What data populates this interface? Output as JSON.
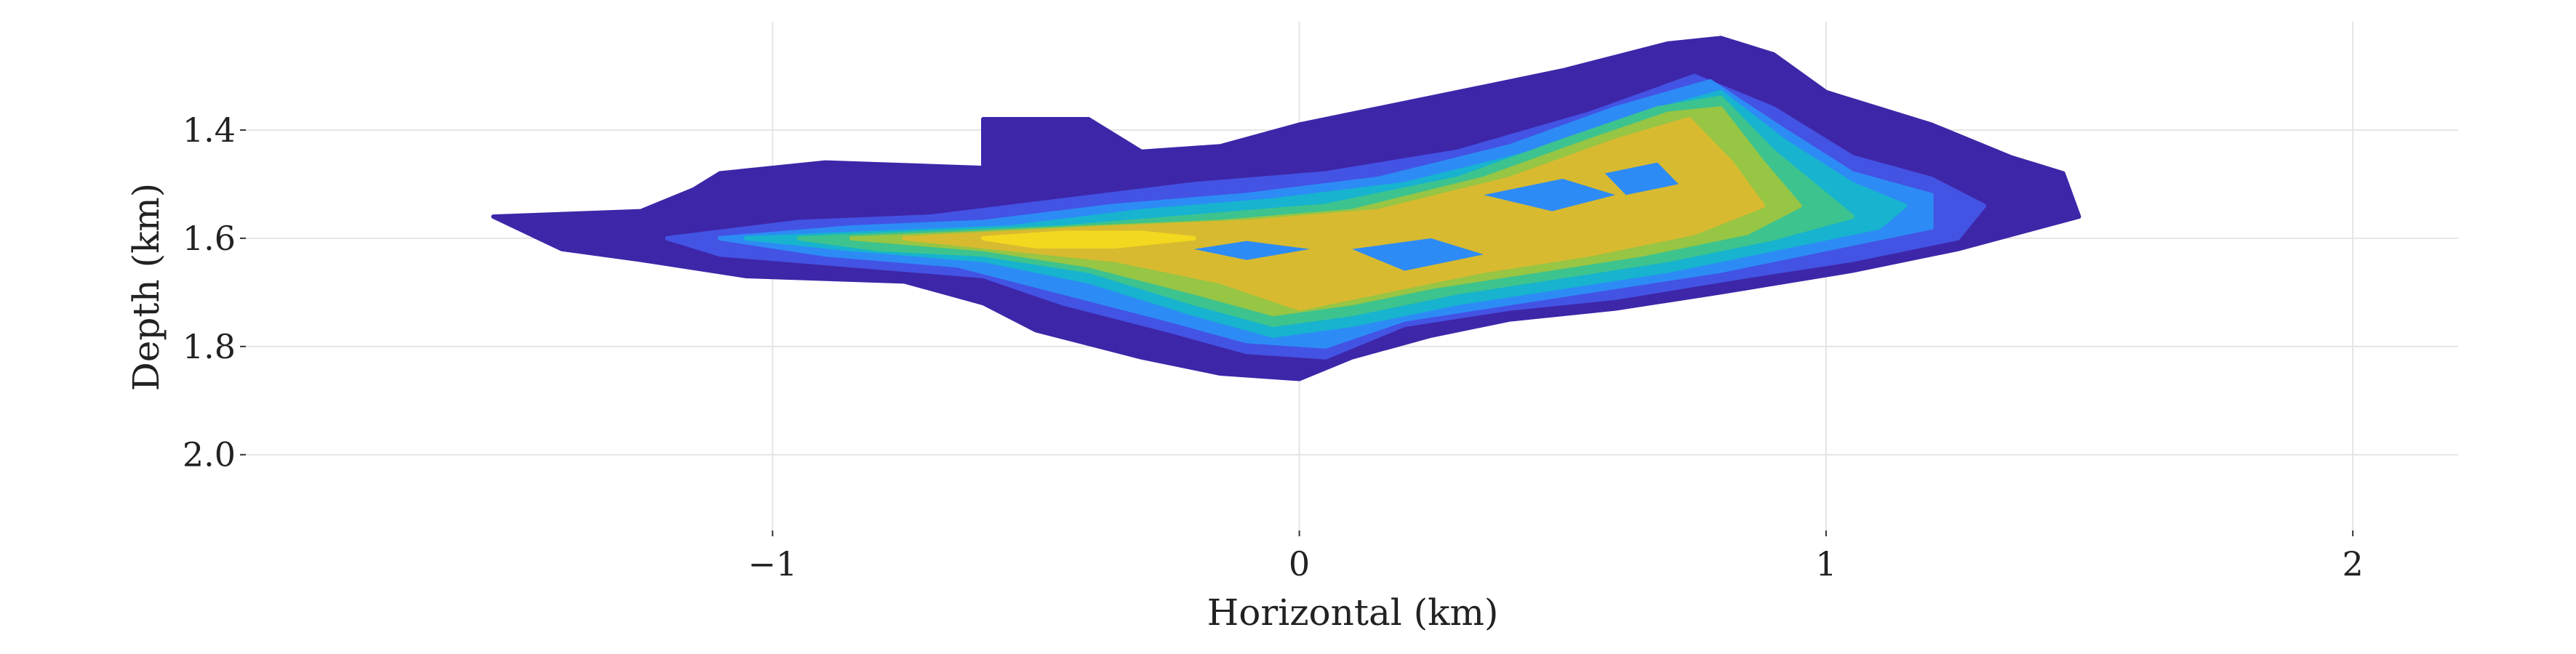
{
  "chart_data": {
    "type": "heatmap",
    "title": "",
    "xlabel": "Horizontal (km)",
    "ylabel": "Depth (km)",
    "xlim": [
      -2.0,
      2.2
    ],
    "ylim": [
      2.14,
      1.2
    ],
    "y_inverted": true,
    "grid": true,
    "colormap": "parula-like (blue → teal → green → yellow)",
    "colors": [
      "#3e26a8",
      "#4353e4",
      "#2d8bf5",
      "#17b3cf",
      "#3dc38e",
      "#97c544",
      "#d8ba30",
      "#f2d81f"
    ],
    "x_ticks": [
      {
        "value": -1,
        "label": "−1"
      },
      {
        "value": 0,
        "label": "0"
      },
      {
        "value": 1,
        "label": "1"
      },
      {
        "value": 2,
        "label": "2"
      }
    ],
    "y_ticks": [
      {
        "value": 1.4,
        "label": "1.4"
      },
      {
        "value": 1.6,
        "label": "1.6"
      },
      {
        "value": 1.8,
        "label": "1.8"
      },
      {
        "value": 2.0,
        "label": "2.0"
      }
    ],
    "levels": [
      {
        "level": 1,
        "color": "#3e26a8",
        "outline": [
          [
            -1.53,
            1.56
          ],
          [
            -1.25,
            1.55
          ],
          [
            -1.15,
            1.51
          ],
          [
            -1.1,
            1.48
          ],
          [
            -0.9,
            1.46
          ],
          [
            -0.6,
            1.47
          ],
          [
            -0.6,
            1.38
          ],
          [
            -0.4,
            1.38
          ],
          [
            -0.3,
            1.44
          ],
          [
            -0.15,
            1.43
          ],
          [
            0.0,
            1.39
          ],
          [
            0.15,
            1.36
          ],
          [
            0.35,
            1.32
          ],
          [
            0.5,
            1.29
          ],
          [
            0.7,
            1.24
          ],
          [
            0.8,
            1.23
          ],
          [
            0.9,
            1.26
          ],
          [
            1.0,
            1.33
          ],
          [
            1.2,
            1.39
          ],
          [
            1.35,
            1.45
          ],
          [
            1.45,
            1.48
          ],
          [
            1.48,
            1.56
          ],
          [
            1.25,
            1.62
          ],
          [
            1.05,
            1.66
          ],
          [
            0.8,
            1.7
          ],
          [
            0.6,
            1.73
          ],
          [
            0.4,
            1.75
          ],
          [
            0.25,
            1.78
          ],
          [
            0.1,
            1.82
          ],
          [
            0.0,
            1.86
          ],
          [
            -0.15,
            1.85
          ],
          [
            -0.3,
            1.82
          ],
          [
            -0.5,
            1.77
          ],
          [
            -0.6,
            1.72
          ],
          [
            -0.75,
            1.68
          ],
          [
            -1.05,
            1.67
          ],
          [
            -1.25,
            1.64
          ],
          [
            -1.4,
            1.62
          ]
        ]
      },
      {
        "level": 2,
        "color": "#4353e4",
        "outline": [
          [
            -1.2,
            1.6
          ],
          [
            -0.95,
            1.57
          ],
          [
            -0.7,
            1.56
          ],
          [
            -0.45,
            1.53
          ],
          [
            -0.2,
            1.5
          ],
          [
            0.05,
            1.48
          ],
          [
            0.3,
            1.44
          ],
          [
            0.55,
            1.37
          ],
          [
            0.75,
            1.3
          ],
          [
            0.9,
            1.36
          ],
          [
            1.05,
            1.45
          ],
          [
            1.2,
            1.49
          ],
          [
            1.3,
            1.54
          ],
          [
            1.25,
            1.6
          ],
          [
            1.05,
            1.64
          ],
          [
            0.85,
            1.67
          ],
          [
            0.6,
            1.71
          ],
          [
            0.4,
            1.73
          ],
          [
            0.2,
            1.76
          ],
          [
            0.05,
            1.82
          ],
          [
            -0.1,
            1.81
          ],
          [
            -0.25,
            1.77
          ],
          [
            -0.45,
            1.72
          ],
          [
            -0.6,
            1.67
          ],
          [
            -0.85,
            1.65
          ],
          [
            -1.1,
            1.63
          ]
        ]
      },
      {
        "level": 3,
        "color": "#2d8bf5",
        "outline": [
          [
            -1.1,
            1.6
          ],
          [
            -0.85,
            1.58
          ],
          [
            -0.6,
            1.57
          ],
          [
            -0.35,
            1.54
          ],
          [
            -0.1,
            1.52
          ],
          [
            0.15,
            1.49
          ],
          [
            0.4,
            1.43
          ],
          [
            0.6,
            1.36
          ],
          [
            0.78,
            1.31
          ],
          [
            0.92,
            1.4
          ],
          [
            1.05,
            1.48
          ],
          [
            1.2,
            1.52
          ],
          [
            1.2,
            1.58
          ],
          [
            1.0,
            1.62
          ],
          [
            0.8,
            1.66
          ],
          [
            0.6,
            1.69
          ],
          [
            0.4,
            1.72
          ],
          [
            0.2,
            1.75
          ],
          [
            0.05,
            1.8
          ],
          [
            -0.1,
            1.79
          ],
          [
            -0.25,
            1.75
          ],
          [
            -0.45,
            1.7
          ],
          [
            -0.65,
            1.65
          ],
          [
            -0.9,
            1.63
          ]
        ]
      },
      {
        "level": 4,
        "color": "#17b3cf",
        "outline": [
          [
            -1.05,
            1.6
          ],
          [
            -0.8,
            1.59
          ],
          [
            -0.55,
            1.58
          ],
          [
            -0.3,
            1.55
          ],
          [
            -0.05,
            1.53
          ],
          [
            0.2,
            1.5
          ],
          [
            0.45,
            1.44
          ],
          [
            0.65,
            1.37
          ],
          [
            0.8,
            1.33
          ],
          [
            0.92,
            1.42
          ],
          [
            1.05,
            1.5
          ],
          [
            1.15,
            1.54
          ],
          [
            1.1,
            1.58
          ],
          [
            0.9,
            1.62
          ],
          [
            0.7,
            1.66
          ],
          [
            0.5,
            1.69
          ],
          [
            0.3,
            1.72
          ],
          [
            0.1,
            1.76
          ],
          [
            -0.05,
            1.78
          ],
          [
            -0.2,
            1.74
          ],
          [
            -0.4,
            1.68
          ],
          [
            -0.6,
            1.64
          ],
          [
            -0.85,
            1.62
          ]
        ]
      },
      {
        "level": 5,
        "color": "#3dc38e",
        "outline": [
          [
            -0.95,
            1.6
          ],
          [
            -0.7,
            1.59
          ],
          [
            -0.45,
            1.58
          ],
          [
            -0.2,
            1.56
          ],
          [
            0.05,
            1.54
          ],
          [
            0.3,
            1.49
          ],
          [
            0.5,
            1.42
          ],
          [
            0.68,
            1.36
          ],
          [
            0.8,
            1.34
          ],
          [
            0.9,
            1.44
          ],
          [
            1.0,
            1.52
          ],
          [
            1.05,
            1.56
          ],
          [
            0.9,
            1.6
          ],
          [
            0.7,
            1.64
          ],
          [
            0.5,
            1.67
          ],
          [
            0.3,
            1.7
          ],
          [
            0.1,
            1.74
          ],
          [
            -0.05,
            1.76
          ],
          [
            -0.2,
            1.72
          ],
          [
            -0.4,
            1.66
          ],
          [
            -0.6,
            1.63
          ],
          [
            -0.8,
            1.62
          ]
        ]
      },
      {
        "level": 6,
        "color": "#97c544",
        "outline": [
          [
            -0.85,
            1.6
          ],
          [
            -0.6,
            1.59
          ],
          [
            -0.4,
            1.58
          ],
          [
            -0.15,
            1.57
          ],
          [
            0.1,
            1.55
          ],
          [
            0.35,
            1.49
          ],
          [
            0.55,
            1.42
          ],
          [
            0.7,
            1.37
          ],
          [
            0.8,
            1.36
          ],
          [
            0.88,
            1.46
          ],
          [
            0.95,
            1.54
          ],
          [
            0.85,
            1.59
          ],
          [
            0.65,
            1.63
          ],
          [
            0.45,
            1.66
          ],
          [
            0.25,
            1.69
          ],
          [
            0.1,
            1.72
          ],
          [
            -0.05,
            1.74
          ],
          [
            -0.2,
            1.7
          ],
          [
            -0.4,
            1.65
          ],
          [
            -0.6,
            1.62
          ]
        ]
      },
      {
        "level": 7,
        "color": "#d8ba30",
        "outline": [
          [
            -0.75,
            1.6
          ],
          [
            -0.55,
            1.59
          ],
          [
            -0.35,
            1.58
          ],
          [
            -0.1,
            1.57
          ],
          [
            0.15,
            1.55
          ],
          [
            0.4,
            1.49
          ],
          [
            0.6,
            1.42
          ],
          [
            0.74,
            1.38
          ],
          [
            0.82,
            1.46
          ],
          [
            0.88,
            1.54
          ],
          [
            0.75,
            1.59
          ],
          [
            0.55,
            1.63
          ],
          [
            0.35,
            1.66
          ],
          [
            0.15,
            1.7
          ],
          [
            0.0,
            1.73
          ],
          [
            -0.15,
            1.68
          ],
          [
            -0.35,
            1.64
          ],
          [
            -0.55,
            1.62
          ]
        ]
      },
      {
        "level": 8,
        "color": "#f2d81f",
        "outline": [
          [
            -0.6,
            1.6
          ],
          [
            -0.45,
            1.59
          ],
          [
            -0.3,
            1.59
          ],
          [
            -0.2,
            1.6
          ],
          [
            -0.35,
            1.615
          ],
          [
            -0.5,
            1.615
          ]
        ]
      }
    ],
    "holes": [
      [
        [
          -0.2,
          1.62
        ],
        [
          -0.1,
          1.605
        ],
        [
          0.02,
          1.62
        ],
        [
          -0.1,
          1.64
        ]
      ],
      [
        [
          0.35,
          1.52
        ],
        [
          0.5,
          1.49
        ],
        [
          0.6,
          1.52
        ],
        [
          0.48,
          1.55
        ]
      ],
      [
        [
          0.1,
          1.62
        ],
        [
          0.25,
          1.6
        ],
        [
          0.35,
          1.63
        ],
        [
          0.2,
          1.66
        ]
      ],
      [
        [
          0.58,
          1.48
        ],
        [
          0.68,
          1.46
        ],
        [
          0.72,
          1.5
        ],
        [
          0.62,
          1.52
        ]
      ]
    ]
  }
}
